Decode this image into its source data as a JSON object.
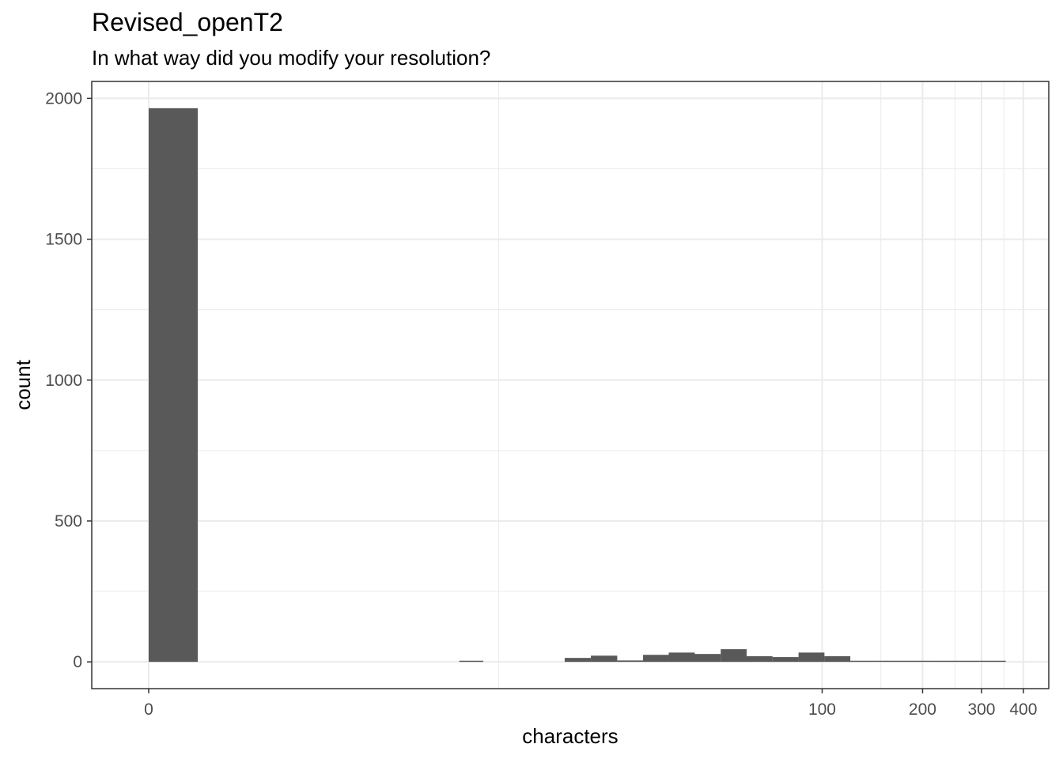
{
  "chart_data": {
    "type": "bar",
    "title": "Revised_openT2",
    "subtitle": "In what way did you modify your resolution?",
    "xlabel": "characters",
    "ylabel": "count",
    "x_scale": "log1p",
    "grid": true,
    "ylim": [
      -95,
      2060
    ],
    "x_ticks": [
      0,
      100,
      200,
      300,
      400
    ],
    "x_minor_ticks": [
      10,
      150,
      250,
      350
    ],
    "y_ticks": [
      0,
      500,
      1000,
      1500,
      2000
    ],
    "bars": [
      {
        "x0": 0,
        "x1": 0.4,
        "count": 1965
      },
      {
        "x0": 7.4,
        "x1": 8.9,
        "count": 4
      },
      {
        "x0": 16.3,
        "x1": 19.7,
        "count": 14
      },
      {
        "x0": 19.7,
        "x1": 23.8,
        "count": 22
      },
      {
        "x0": 23.8,
        "x1": 28.6,
        "count": 5
      },
      {
        "x0": 28.6,
        "x1": 34.3,
        "count": 25
      },
      {
        "x0": 34.3,
        "x1": 41.2,
        "count": 33
      },
      {
        "x0": 41.2,
        "x1": 49.4,
        "count": 28
      },
      {
        "x0": 49.4,
        "x1": 59.2,
        "count": 45
      },
      {
        "x0": 59.2,
        "x1": 70.9,
        "count": 20
      },
      {
        "x0": 70.9,
        "x1": 84.9,
        "count": 17
      },
      {
        "x0": 84.9,
        "x1": 101.6,
        "count": 33
      },
      {
        "x0": 101.6,
        "x1": 121.5,
        "count": 20
      },
      {
        "x0": 121.5,
        "x1": 145.3,
        "count": 4
      },
      {
        "x0": 145.3,
        "x1": 173.7,
        "count": 4
      },
      {
        "x0": 173.7,
        "x1": 207.6,
        "count": 4
      },
      {
        "x0": 207.6,
        "x1": 248.2,
        "count": 4
      },
      {
        "x0": 248.2,
        "x1": 296.6,
        "count": 4
      },
      {
        "x0": 296.6,
        "x1": 354.5,
        "count": 4
      }
    ],
    "bar_color": "#595959",
    "grid_color": "#ebebeb"
  }
}
